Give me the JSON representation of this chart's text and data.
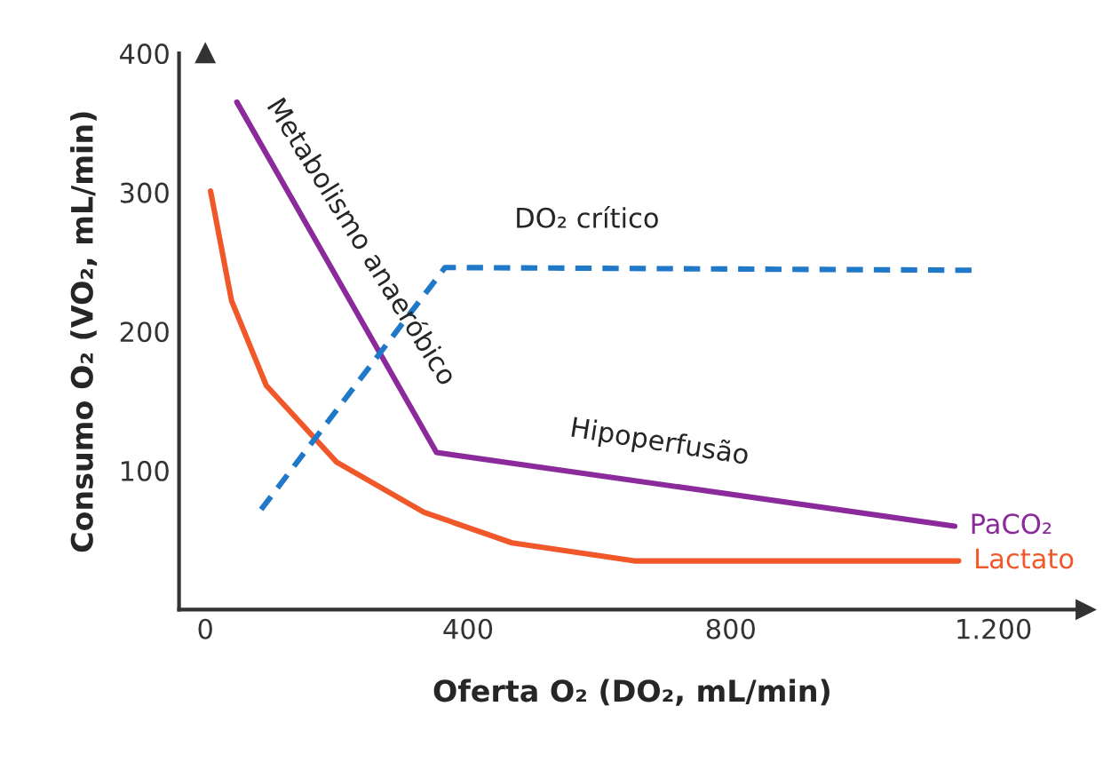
{
  "chart_data": {
    "type": "line",
    "xlabel": "Oferta O₂ (DO₂, mL/min)",
    "ylabel": "Consumo O₂ (VO₂, mL/min)",
    "xlim": [
      -40,
      1340
    ],
    "ylim": [
      0,
      400
    ],
    "xticks": [
      0,
      400,
      800,
      {
        "value": 1200,
        "label": "1.200"
      }
    ],
    "yticks": [
      100,
      200,
      300,
      400
    ],
    "grid": false,
    "legend": false,
    "marker": "none",
    "series": [
      {
        "name": "PaCO₂",
        "color": "#8b2a9b",
        "x": [
          48,
          352,
          1141
        ],
        "values": [
          365,
          113,
          60
        ]
      },
      {
        "name": "Lactato",
        "color": "#f0582a",
        "x": [
          8,
          40,
          93,
          200,
          333,
          467,
          653,
          867,
          1147
        ],
        "values": [
          301,
          222,
          161,
          106,
          70,
          48,
          35,
          35,
          35
        ]
      },
      {
        "color": "#1f78c8",
        "line_style": "dashed",
        "x": [
          85,
          365,
          1173
        ],
        "values": [
          72,
          246,
          244
        ]
      }
    ],
    "annotations": [
      "DO₂ crítico",
      "Metabolismo anaeróbico",
      "Hipoperfusão"
    ]
  }
}
